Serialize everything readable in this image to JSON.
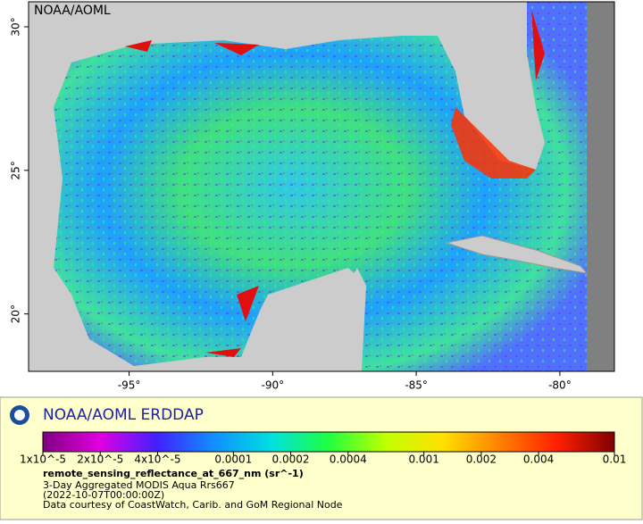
{
  "map": {
    "watermark": "NOAA/AOML",
    "xlim": [
      -98.5,
      -78.1
    ],
    "ylim": [
      18.0,
      30.87
    ],
    "xticks": [
      {
        "value": -95,
        "label": "-95°"
      },
      {
        "value": -90,
        "label": "-90°"
      },
      {
        "value": -85,
        "label": "-85°"
      },
      {
        "value": -80,
        "label": "-80°"
      }
    ],
    "yticks": [
      {
        "value": 30,
        "label": "30°"
      },
      {
        "value": 25,
        "label": "25°"
      },
      {
        "value": 20,
        "label": "20°"
      }
    ]
  },
  "legend": {
    "title": "NOAA/AOML ERDDAP",
    "colorbar": {
      "log": true,
      "range": [
        1e-05,
        0.01
      ],
      "colors": [
        "#800080",
        "#e000e0",
        "#4020ff",
        "#1090ff",
        "#00e0e0",
        "#20ff40",
        "#c0ff00",
        "#ffe000",
        "#ff8000",
        "#ff2000",
        "#800000"
      ],
      "ticks": [
        {
          "value": 1e-05,
          "label": "1x10^-5"
        },
        {
          "value": 2e-05,
          "label": "2x10^-5"
        },
        {
          "value": 4e-05,
          "label": "4x10^-5"
        },
        {
          "value": 0.0001,
          "label": "0.0001"
        },
        {
          "value": 0.0002,
          "label": "0.0002"
        },
        {
          "value": 0.0004,
          "label": "0.0004"
        },
        {
          "value": 0.001,
          "label": "0.001"
        },
        {
          "value": 0.002,
          "label": "0.002"
        },
        {
          "value": 0.004,
          "label": "0.004"
        },
        {
          "value": 0.01,
          "label": "0.01"
        }
      ]
    },
    "variable": "remote_sensing_reflectance_at_667_nm (sr^-1)",
    "lines": [
      "3-Day Aggregated MODIS Aqua Rrs667",
      "(2022-10-07T00:00:00Z)",
      "Data courtesy of CoastWatch, Carib. and GoM Regional Node"
    ]
  }
}
